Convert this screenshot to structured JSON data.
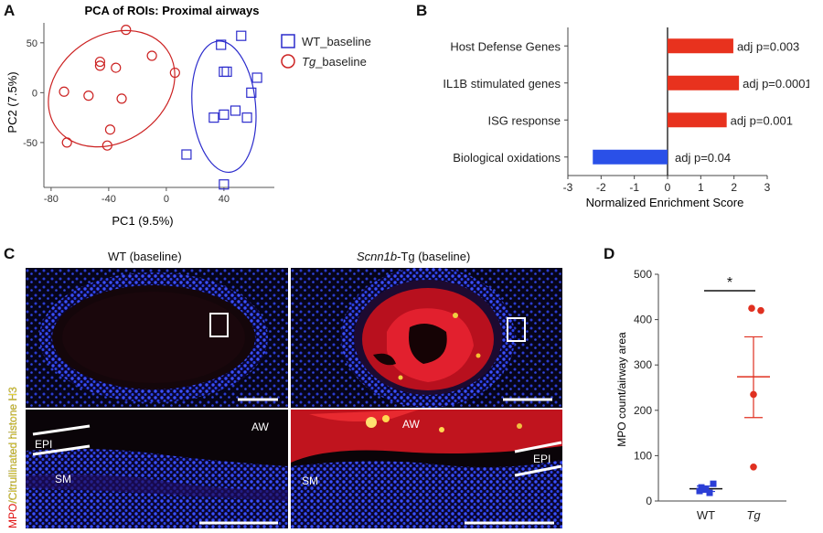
{
  "panels": {
    "A": "A",
    "B": "B",
    "C": "C",
    "D": "D"
  },
  "chart_data": [
    {
      "id": "A",
      "type": "scatter",
      "title": "PCA of ROIs: Proximal airways",
      "xlabel": "PC1 (9.5%)",
      "ylabel": "PC2 (7.5%)",
      "xlim": [
        -85,
        75
      ],
      "ylim": [
        -95,
        70
      ],
      "xticks": [
        -80,
        -40,
        0,
        40
      ],
      "yticks": [
        -50,
        0,
        50
      ],
      "series": [
        {
          "name": "WT_baseline",
          "marker": "square",
          "color": "#2b2bcc",
          "points": [
            [
              38,
              48
            ],
            [
              52,
              57
            ],
            [
              40,
              21
            ],
            [
              42,
              21
            ],
            [
              63,
              15
            ],
            [
              59,
              0
            ],
            [
              33,
              -25
            ],
            [
              40,
              -22
            ],
            [
              48,
              -18
            ],
            [
              56,
              -25
            ],
            [
              14,
              -62
            ],
            [
              40,
              -92
            ]
          ]
        },
        {
          "name": "Tg_baseline",
          "marker": "circle",
          "color": "#cc2222",
          "points": [
            [
              -28,
              63
            ],
            [
              -46,
              31
            ],
            [
              -46,
              27
            ],
            [
              -35,
              25
            ],
            [
              -10,
              37
            ],
            [
              6,
              20
            ],
            [
              -71,
              1
            ],
            [
              -54,
              -3
            ],
            [
              -31,
              -6
            ],
            [
              -39,
              -37
            ],
            [
              -69,
              -50
            ],
            [
              -41,
              -53
            ]
          ]
        }
      ],
      "ellipses": [
        {
          "series": "Tg_baseline",
          "cx": -38,
          "cy": 4,
          "rx": 47,
          "ry": 53,
          "angle_deg": -35
        },
        {
          "series": "WT_baseline",
          "cx": 40,
          "cy": -14,
          "rx": 22,
          "ry": 66,
          "angle_deg": -5
        }
      ]
    },
    {
      "id": "B",
      "type": "bar",
      "orientation": "horizontal",
      "xlabel": "Normalized Enrichment Score",
      "xlim": [
        -3,
        3
      ],
      "xticks": [
        -3,
        -2,
        -1,
        0,
        1,
        2,
        3
      ],
      "categories": [
        "Host Defense Genes",
        "IL1B stimulated genes",
        "ISG response",
        "Biological oxidations"
      ],
      "values": [
        1.98,
        2.15,
        1.78,
        -2.25
      ],
      "colors": [
        "#e8321e",
        "#e8321e",
        "#e8321e",
        "#2a50e8"
      ],
      "annotations": [
        "adj p=0.003",
        "adj p=0.0001",
        "adj p=0.001",
        "adj p=0.04"
      ]
    },
    {
      "id": "D",
      "type": "scatter",
      "ylabel": "MPO count/airway area",
      "ylim": [
        0,
        500
      ],
      "yticks": [
        0,
        100,
        200,
        300,
        400,
        500
      ],
      "categories": [
        "WT",
        "Tg"
      ],
      "series": [
        {
          "name": "WT",
          "color": "#2b3ed6",
          "marker": "square",
          "values": [
            30,
            38,
            22,
            18,
            25
          ],
          "mean": 27,
          "sem_low": 21,
          "sem_high": 33
        },
        {
          "name": "Tg",
          "color": "#e03020",
          "marker": "circle",
          "values": [
            425,
            420,
            235,
            75
          ],
          "mean": 274,
          "sem_low": 184,
          "sem_high": 362
        }
      ],
      "significance": "*"
    }
  ],
  "panel_c": {
    "col1_title": "WT (baseline)",
    "col2_title_italic": "Scnn1b",
    "col2_title_rest": "-Tg (baseline)",
    "side_label_red": "MPO",
    "side_label_yellow": "/Citrullinated histone H3",
    "labels": {
      "aw": "AW",
      "epi": "EPI",
      "sm": "SM"
    }
  }
}
